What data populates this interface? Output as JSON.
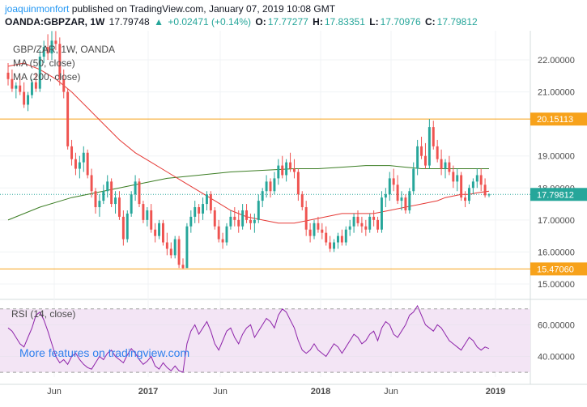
{
  "header": {
    "author": "joaquinmonfort",
    "published": "published on TradingView.com, January 07, 2019 10:08 GMT",
    "symbol": "OANDA:GBPZAR, 1W",
    "last": "17.79748",
    "change": "+0.02471 (+0.14%)",
    "o_label": "O:",
    "o_value": "17.77277",
    "h_label": "H:",
    "h_value": "17.83351",
    "l_label": "L:",
    "l_value": "17.70976",
    "c_label": "C:",
    "c_value": "17.79812"
  },
  "legend": {
    "title": "GBP/ZAR, 1W, OANDA",
    "ma50": "MA (50, close)",
    "ma200": "MA (200, close)",
    "rsi": "RSI (14, close)"
  },
  "watermark": "More features on tradingview.com",
  "colors": {
    "up": "#26a69a",
    "down": "#ef5350",
    "ma50": "#e53935",
    "ma200": "#3b7d23",
    "hline": "#f7a21b",
    "rsi_line": "#8e24aa",
    "rsi_band": "#f3e5f5",
    "price_badge": "#26a69a",
    "level_badge": "#f7a21b"
  },
  "chart_data": [
    {
      "type": "candlestick",
      "title": "GBP/ZAR, 1W, OANDA",
      "x_labels": [
        "Jun",
        "2017",
        "Jun",
        "2018",
        "Jun",
        "2019"
      ],
      "y_ticks": [
        "22.00000",
        "21.00000",
        "19.00000",
        "18.00000",
        "17.00000",
        "16.00000",
        "15.00000"
      ],
      "ylim": [
        14.5,
        23.0
      ],
      "current_price": 17.79812,
      "current_price_label": "17.79812",
      "levels": [
        {
          "value": 20.15113,
          "label": "20.15113"
        },
        {
          "value": 15.4706,
          "label": "15.47060"
        }
      ],
      "ohlc": [
        [
          21.6,
          21.9,
          21.2,
          21.4
        ],
        [
          21.4,
          21.7,
          21.0,
          21.1
        ],
        [
          21.1,
          21.3,
          20.8,
          21.2
        ],
        [
          21.2,
          21.5,
          20.9,
          21.0
        ],
        [
          21.0,
          21.3,
          20.5,
          20.6
        ],
        [
          20.6,
          21.0,
          20.4,
          20.9
        ],
        [
          20.9,
          21.4,
          20.8,
          21.3
        ],
        [
          21.3,
          21.6,
          21.0,
          21.1
        ],
        [
          21.1,
          22.3,
          21.0,
          22.1
        ],
        [
          22.1,
          22.6,
          21.9,
          22.4
        ],
        [
          22.4,
          22.8,
          22.0,
          22.2
        ],
        [
          22.2,
          22.9,
          22.0,
          22.6
        ],
        [
          22.6,
          22.9,
          22.3,
          22.5
        ],
        [
          22.5,
          22.7,
          21.2,
          21.4
        ],
        [
          21.4,
          21.7,
          20.8,
          21.0
        ],
        [
          21.0,
          21.1,
          19.2,
          19.3
        ],
        [
          19.3,
          19.5,
          18.7,
          18.9
        ],
        [
          18.9,
          19.1,
          18.4,
          18.6
        ],
        [
          18.6,
          19.0,
          18.3,
          18.8
        ],
        [
          18.8,
          19.3,
          18.5,
          19.1
        ],
        [
          19.1,
          19.2,
          18.3,
          18.4
        ],
        [
          18.4,
          18.6,
          17.7,
          17.9
        ],
        [
          17.9,
          18.0,
          17.2,
          17.4
        ],
        [
          17.4,
          17.8,
          17.1,
          17.6
        ],
        [
          17.6,
          18.1,
          17.5,
          17.9
        ],
        [
          17.9,
          18.4,
          17.7,
          18.2
        ],
        [
          18.2,
          18.3,
          17.4,
          17.5
        ],
        [
          17.5,
          17.9,
          17.2,
          17.7
        ],
        [
          17.7,
          17.9,
          17.0,
          17.1
        ],
        [
          17.1,
          17.3,
          16.2,
          16.4
        ],
        [
          16.4,
          17.3,
          16.3,
          17.2
        ],
        [
          17.2,
          17.9,
          17.1,
          17.8
        ],
        [
          17.8,
          18.4,
          17.6,
          18.2
        ],
        [
          18.2,
          18.3,
          17.4,
          17.5
        ],
        [
          17.5,
          17.6,
          16.9,
          17.0
        ],
        [
          17.0,
          17.4,
          16.8,
          17.3
        ],
        [
          17.3,
          17.5,
          16.6,
          16.7
        ],
        [
          16.7,
          16.9,
          16.3,
          16.5
        ],
        [
          16.5,
          17.0,
          16.4,
          16.9
        ],
        [
          16.9,
          17.0,
          16.2,
          16.3
        ],
        [
          16.3,
          16.6,
          15.9,
          16.1
        ],
        [
          16.1,
          16.3,
          15.8,
          15.9
        ],
        [
          15.9,
          16.5,
          15.8,
          16.4
        ],
        [
          16.4,
          16.5,
          15.5,
          15.6
        ],
        [
          15.6,
          15.8,
          15.47,
          15.5
        ],
        [
          15.5,
          16.9,
          15.5,
          16.8
        ],
        [
          16.8,
          17.3,
          16.6,
          17.1
        ],
        [
          17.1,
          17.6,
          16.9,
          17.4
        ],
        [
          17.4,
          17.5,
          16.9,
          17.2
        ],
        [
          17.2,
          17.7,
          17.0,
          17.5
        ],
        [
          17.5,
          17.9,
          17.3,
          17.8
        ],
        [
          17.8,
          17.9,
          17.2,
          17.3
        ],
        [
          17.3,
          17.4,
          16.7,
          16.8
        ],
        [
          16.8,
          17.0,
          16.3,
          16.4
        ],
        [
          16.4,
          16.6,
          16.1,
          16.3
        ],
        [
          16.3,
          16.9,
          16.2,
          16.8
        ],
        [
          16.8,
          17.3,
          16.7,
          17.1
        ],
        [
          17.1,
          17.4,
          16.8,
          17.0
        ],
        [
          17.0,
          17.3,
          16.6,
          16.8
        ],
        [
          16.8,
          17.5,
          16.7,
          17.3
        ],
        [
          17.3,
          17.5,
          16.9,
          17.0
        ],
        [
          17.0,
          17.2,
          16.7,
          16.9
        ],
        [
          16.9,
          17.2,
          16.6,
          17.0
        ],
        [
          17.0,
          17.8,
          16.9,
          17.6
        ],
        [
          17.6,
          18.0,
          17.4,
          17.9
        ],
        [
          17.9,
          18.4,
          17.7,
          18.2
        ],
        [
          18.2,
          18.3,
          17.7,
          17.9
        ],
        [
          17.9,
          18.5,
          17.8,
          18.3
        ],
        [
          18.3,
          18.9,
          18.1,
          18.7
        ],
        [
          18.7,
          19.0,
          18.3,
          18.4
        ],
        [
          18.4,
          18.9,
          18.2,
          18.8
        ],
        [
          18.8,
          19.1,
          18.5,
          18.6
        ],
        [
          18.6,
          18.9,
          18.3,
          18.5
        ],
        [
          18.5,
          18.6,
          17.6,
          17.8
        ],
        [
          17.8,
          17.9,
          17.3,
          17.4
        ],
        [
          17.4,
          17.6,
          16.5,
          16.7
        ],
        [
          16.7,
          16.9,
          16.3,
          16.5
        ],
        [
          16.5,
          17.0,
          16.4,
          16.9
        ],
        [
          16.9,
          17.1,
          16.6,
          16.7
        ],
        [
          16.7,
          16.9,
          16.4,
          16.6
        ],
        [
          16.6,
          16.8,
          16.2,
          16.3
        ],
        [
          16.3,
          16.5,
          16.0,
          16.1
        ],
        [
          16.1,
          16.4,
          16.0,
          16.3
        ],
        [
          16.3,
          16.6,
          16.1,
          16.5
        ],
        [
          16.5,
          16.7,
          16.2,
          16.3
        ],
        [
          16.3,
          16.8,
          16.2,
          16.7
        ],
        [
          16.7,
          17.0,
          16.5,
          16.8
        ],
        [
          16.8,
          17.2,
          16.6,
          17.1
        ],
        [
          17.1,
          17.3,
          16.8,
          16.9
        ],
        [
          16.9,
          17.1,
          16.6,
          16.8
        ],
        [
          16.8,
          17.0,
          16.5,
          16.7
        ],
        [
          16.7,
          17.2,
          16.6,
          17.1
        ],
        [
          17.1,
          17.3,
          16.8,
          17.0
        ],
        [
          17.0,
          17.1,
          16.6,
          16.7
        ],
        [
          16.7,
          17.9,
          16.6,
          17.7
        ],
        [
          17.7,
          18.0,
          17.4,
          17.8
        ],
        [
          17.8,
          18.5,
          17.6,
          18.3
        ],
        [
          18.3,
          18.6,
          17.9,
          18.1
        ],
        [
          18.1,
          18.4,
          17.5,
          17.6
        ],
        [
          17.6,
          17.9,
          17.3,
          17.7
        ],
        [
          17.7,
          17.8,
          17.2,
          17.3
        ],
        [
          17.3,
          18.0,
          17.2,
          17.9
        ],
        [
          17.9,
          18.8,
          17.8,
          18.6
        ],
        [
          18.6,
          19.5,
          18.4,
          19.3
        ],
        [
          19.3,
          19.6,
          18.9,
          19.0
        ],
        [
          19.0,
          19.4,
          18.6,
          18.7
        ],
        [
          18.7,
          20.15,
          18.6,
          19.9
        ],
        [
          19.9,
          20.1,
          19.2,
          19.3
        ],
        [
          19.3,
          19.5,
          18.8,
          18.9
        ],
        [
          18.9,
          19.2,
          18.4,
          18.6
        ],
        [
          18.6,
          18.9,
          18.3,
          18.8
        ],
        [
          18.8,
          19.0,
          18.4,
          18.5
        ],
        [
          18.5,
          18.7,
          18.0,
          18.2
        ],
        [
          18.2,
          18.6,
          17.9,
          18.4
        ],
        [
          18.4,
          18.5,
          17.6,
          17.7
        ],
        [
          17.7,
          17.9,
          17.4,
          17.6
        ],
        [
          17.6,
          18.1,
          17.5,
          18.0
        ],
        [
          18.0,
          18.3,
          17.8,
          18.2
        ],
        [
          18.2,
          18.6,
          18.0,
          18.4
        ],
        [
          18.4,
          18.6,
          17.9,
          18.1
        ],
        [
          18.1,
          18.3,
          17.7,
          17.77
        ],
        [
          17.77,
          17.83,
          17.71,
          17.8
        ]
      ],
      "ma50_label": "MA (50, close)",
      "ma50": [
        21.8,
        21.9,
        21.7,
        21.4,
        21.0,
        20.5,
        20.0,
        19.5,
        19.1,
        18.8,
        18.5,
        18.2,
        17.9,
        17.6,
        17.3,
        17.1,
        17.0,
        16.9,
        16.9,
        17.0,
        17.1,
        17.2,
        17.2,
        17.2,
        17.3,
        17.4,
        17.5,
        17.55,
        17.6,
        17.7,
        17.75,
        17.8,
        17.8,
        17.85,
        17.9
      ],
      "ma50_x_idx": [
        0,
        4,
        8,
        12,
        16,
        20,
        24,
        28,
        32,
        36,
        40,
        44,
        48,
        52,
        56,
        60,
        64,
        68,
        72,
        76,
        80,
        84,
        88,
        92,
        96,
        100,
        104,
        106,
        108,
        110,
        112,
        114,
        116,
        118,
        121
      ],
      "ma200_label": "MA (200, close)",
      "ma200": [
        17.0,
        17.4,
        17.7,
        17.9,
        18.1,
        18.3,
        18.4,
        18.5,
        18.55,
        18.6,
        18.6,
        18.65,
        18.7,
        18.7,
        18.65,
        18.6,
        18.6,
        18.6,
        18.6,
        18.6
      ],
      "ma200_x_idx": [
        0,
        8,
        16,
        24,
        32,
        40,
        48,
        56,
        64,
        72,
        78,
        84,
        90,
        96,
        100,
        104,
        108,
        112,
        116,
        121
      ]
    },
    {
      "type": "line",
      "title": "RSI (14, close)",
      "y_ticks": [
        "60.00000",
        "40.00000"
      ],
      "ylim": [
        27,
        75
      ],
      "bands": [
        70,
        30
      ],
      "values": [
        58,
        56,
        52,
        48,
        46,
        52,
        58,
        66,
        68,
        63,
        56,
        48,
        40,
        36,
        38,
        35,
        40,
        42,
        38,
        35,
        33,
        32,
        36,
        40,
        38,
        42,
        44,
        40,
        38,
        36,
        41,
        45,
        42,
        38,
        35,
        37,
        40,
        34,
        32,
        36,
        33,
        31,
        34,
        31,
        30,
        48,
        56,
        60,
        54,
        58,
        62,
        56,
        48,
        44,
        50,
        56,
        58,
        52,
        48,
        54,
        58,
        60,
        52,
        56,
        60,
        64,
        62,
        58,
        66,
        70,
        68,
        63,
        58,
        50,
        44,
        42,
        44,
        48,
        44,
        42,
        40,
        44,
        48,
        46,
        42,
        46,
        50,
        54,
        52,
        48,
        50,
        54,
        56,
        50,
        58,
        62,
        60,
        54,
        52,
        56,
        60,
        66,
        68,
        72,
        66,
        60,
        58,
        56,
        60,
        58,
        54,
        50,
        48,
        46,
        44,
        48,
        52,
        50,
        46,
        44,
        46,
        45
      ]
    }
  ]
}
